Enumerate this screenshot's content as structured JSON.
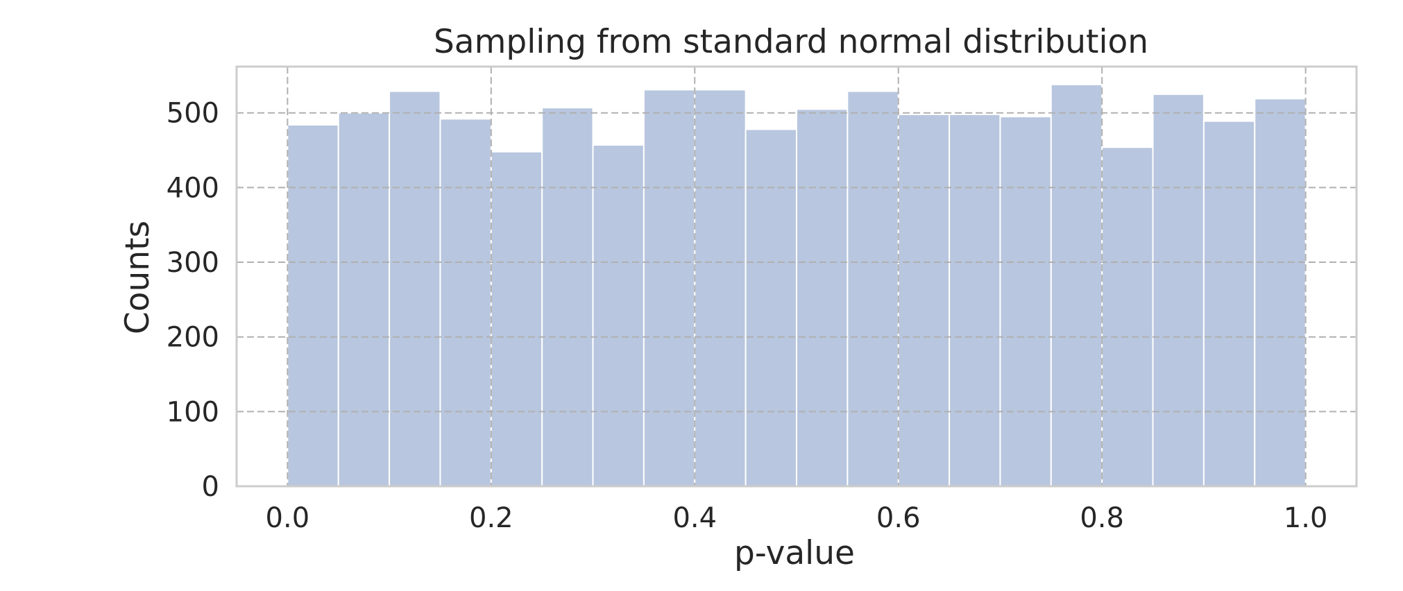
{
  "chart_data": {
    "type": "bar",
    "title": "Sampling from standard normal distribution",
    "xlabel": "p-value",
    "ylabel": "Counts",
    "xlim": [
      -0.05,
      1.05
    ],
    "ylim": [
      0,
      562
    ],
    "grid": true,
    "bar_color": "#b8c6df",
    "bin_edges": [
      0.0,
      0.05,
      0.1,
      0.15,
      0.2,
      0.25,
      0.3,
      0.35,
      0.4,
      0.45,
      0.5,
      0.55,
      0.6,
      0.65,
      0.7,
      0.75,
      0.8,
      0.85,
      0.9,
      0.95,
      1.0
    ],
    "values": [
      484,
      500,
      529,
      492,
      448,
      507,
      457,
      531,
      531,
      478,
      505,
      529,
      498,
      498,
      495,
      538,
      454,
      525,
      489,
      519
    ],
    "x_ticks": [
      0.0,
      0.2,
      0.4,
      0.6,
      0.8,
      1.0
    ],
    "x_tick_labels": [
      "0.0",
      "0.2",
      "0.4",
      "0.6",
      "0.8",
      "1.0"
    ],
    "y_ticks": [
      0,
      100,
      200,
      300,
      400,
      500
    ],
    "y_tick_labels": [
      "0",
      "100",
      "200",
      "300",
      "400",
      "500"
    ]
  }
}
